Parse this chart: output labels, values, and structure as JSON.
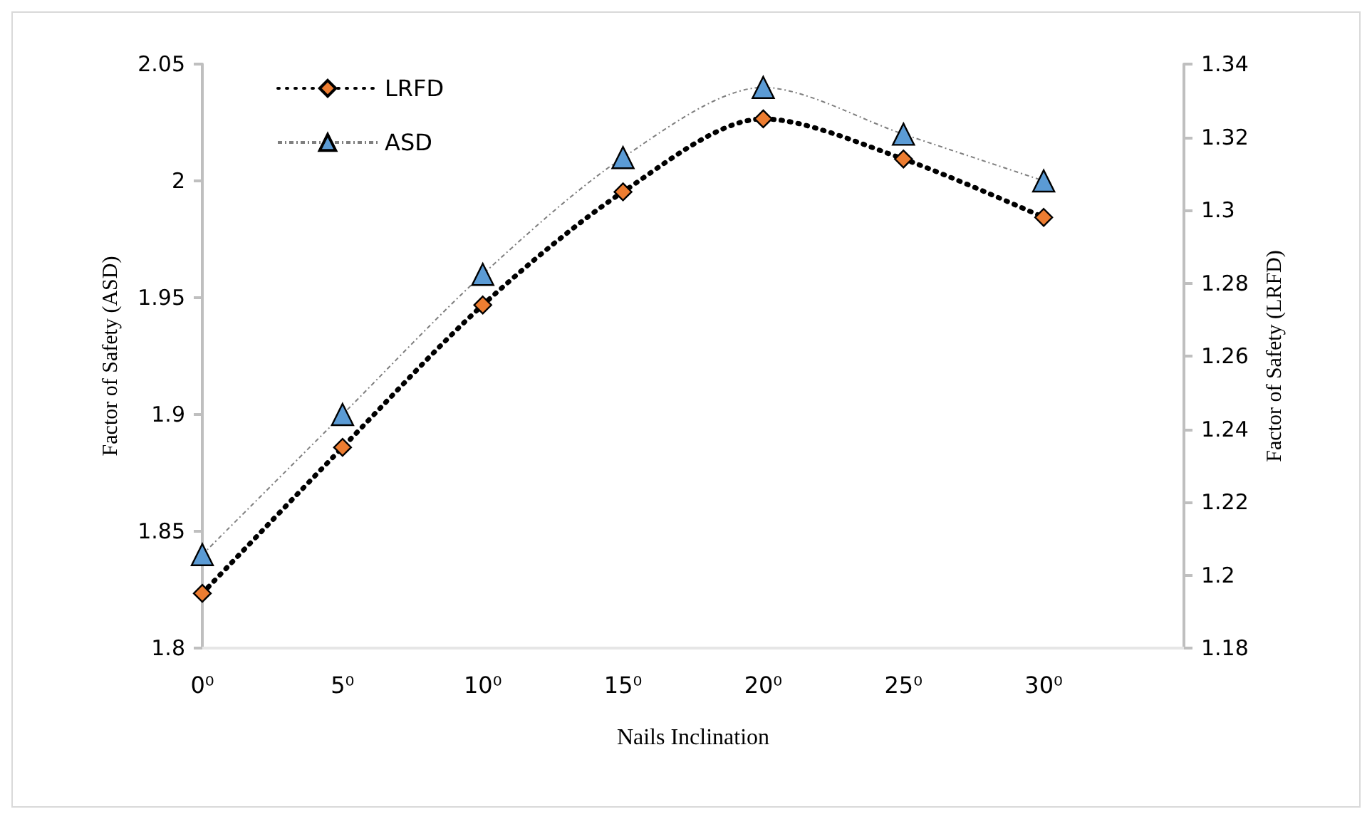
{
  "chart_data": {
    "type": "line",
    "xlabel": "Nails Inclination",
    "ylabel": "Factor of Safety (ASD)",
    "y2label": "Factor of Safety (LRFD)",
    "categories": [
      "0⁰",
      "5⁰",
      "10⁰",
      "15⁰",
      "20⁰",
      "25⁰",
      "30⁰"
    ],
    "ylim": [
      1.8,
      2.05
    ],
    "yticks": [
      1.8,
      1.85,
      1.9,
      1.95,
      2,
      2.05
    ],
    "y2lim": [
      1.18,
      1.34
    ],
    "y2ticks": [
      1.18,
      1.2,
      1.22,
      1.24,
      1.26,
      1.28,
      1.3,
      1.32,
      1.34
    ],
    "series": [
      {
        "name": "LRFD",
        "color": "#ed7d31",
        "axis": "y2",
        "marker": "diamond",
        "line_style": "dotted",
        "values": [
          1.195,
          1.235,
          1.274,
          1.305,
          1.325,
          1.314,
          1.298
        ]
      },
      {
        "name": "ASD",
        "color": "#5b9bd5",
        "marker": "triangle",
        "line_style": "dashed",
        "values": [
          1.84,
          1.9,
          1.96,
          2.01,
          2.04,
          2.02,
          2.0
        ]
      }
    ],
    "grid": false,
    "legend": "top left"
  }
}
